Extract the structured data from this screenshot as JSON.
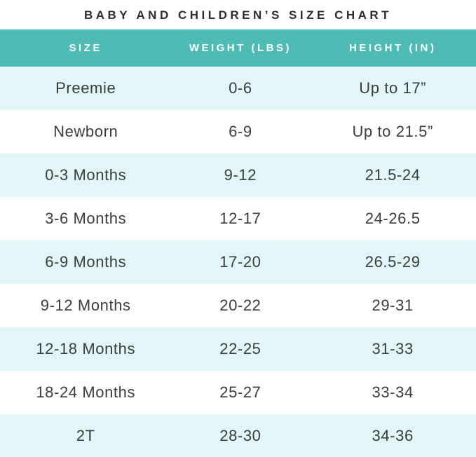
{
  "title": "BABY AND CHILDREN’S SIZE CHART",
  "colors": {
    "header_bg": "#4EBCB4",
    "header_text": "#FFFFFF",
    "row_alt_bg": "#E2F5F7",
    "row_bg": "#FFFFFF",
    "title_text": "#2D2D2D",
    "body_text": "#3C3C3C"
  },
  "chart_data": {
    "type": "table",
    "title": "BABY AND CHILDREN’S SIZE CHART",
    "columns": [
      "SIZE",
      "WEIGHT (LBS)",
      "HEIGHT (IN)"
    ],
    "rows": [
      [
        "Preemie",
        "0-6",
        "Up to 17”"
      ],
      [
        "Newborn",
        "6-9",
        "Up to 21.5”"
      ],
      [
        "0-3 Months",
        "9-12",
        "21.5-24"
      ],
      [
        "3-6 Months",
        "12-17",
        "24-26.5"
      ],
      [
        "6-9 Months",
        "17-20",
        "26.5-29"
      ],
      [
        "9-12 Months",
        "20-22",
        "29-31"
      ],
      [
        "12-18 Months",
        "22-25",
        "31-33"
      ],
      [
        "18-24 Months",
        "25-27",
        "33-34"
      ],
      [
        "2T",
        "28-30",
        "34-36"
      ]
    ],
    "layout": {
      "first_row_shaded": true,
      "alternating_rows": true,
      "column_alignment": "center"
    }
  }
}
